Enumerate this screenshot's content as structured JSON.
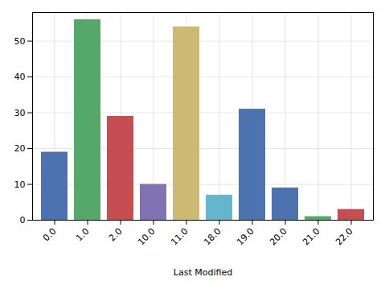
{
  "chart_data": {
    "type": "bar",
    "xlabel": "Last Modified",
    "categories": [
      "0.0",
      "1.0",
      "2.0",
      "10.0",
      "11.0",
      "18.0",
      "19.0",
      "20.0",
      "21.0",
      "22.0"
    ],
    "values": [
      19,
      56,
      29,
      10,
      54,
      7,
      31,
      9,
      1,
      3
    ],
    "colors": [
      "#4c72b0",
      "#55a868",
      "#c44e52",
      "#8172b2",
      "#ccb974",
      "#64b5cd",
      "#4c72b0",
      "#4c72b0",
      "#55a868",
      "#c44e52"
    ],
    "ylim": [
      0,
      58
    ],
    "yticks": [
      0,
      10,
      20,
      30,
      40,
      50
    ],
    "grid": true
  }
}
